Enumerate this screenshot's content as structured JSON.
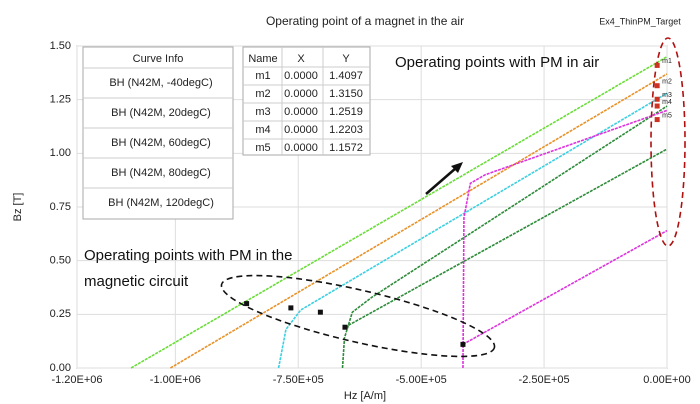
{
  "chart_data": {
    "type": "line",
    "title": "Operating point of a magnet in the air",
    "subtitle": "Ex4_ThinPM_Target",
    "x_label": "Hz [A/m]",
    "y_label": "Bz [T]",
    "xlim": [
      -1200000,
      0
    ],
    "xticks": [
      {
        "value": -1200000,
        "label": "-1.20E+06"
      },
      {
        "value": -1000000,
        "label": "-1.00E+06"
      },
      {
        "value": -750000,
        "label": "-7.50E+05"
      },
      {
        "value": -500000,
        "label": "-5.00E+05"
      },
      {
        "value": -250000,
        "label": "-2.50E+05"
      },
      {
        "value": 0,
        "label": "0.00E+00"
      }
    ],
    "ylim": [
      0,
      1.5
    ],
    "yticks": [
      {
        "value": 0,
        "label": "0.00"
      },
      {
        "value": 0.25,
        "label": "0.25"
      },
      {
        "value": 0.5,
        "label": "0.50"
      },
      {
        "value": 0.75,
        "label": "0.75"
      },
      {
        "value": 1,
        "label": "1.00"
      },
      {
        "value": 1.25,
        "label": "1.25"
      },
      {
        "value": 1.5,
        "label": "1.50"
      }
    ],
    "grid": true,
    "legend_title": "Curve Info",
    "series": [
      {
        "name": "BH (N42M, -40degC)",
        "color": "#6bdc3a",
        "x": [
          -1090000,
          0
        ],
        "values": [
          0,
          1.45
        ]
      },
      {
        "name": "BH (N42M, 20degC)",
        "color": "#e8922a",
        "x": [
          -1010000,
          0
        ],
        "values": [
          0,
          1.37
        ]
      },
      {
        "name": "BH (N42M, 60degC)",
        "color": "#3ccfe0",
        "x": [
          -790000,
          -775000,
          -745000,
          0
        ],
        "values": [
          0,
          0.18,
          0.27,
          1.28
        ]
      },
      {
        "name": "BH (N42M, 80degC)",
        "color": "#2e8b3a",
        "x": [
          -660000,
          -656000,
          -640000,
          -600000,
          0,
          null,
          -655000,
          0
        ],
        "values": [
          0,
          0.14,
          0.26,
          0.33,
          1.22,
          null,
          0.19,
          1.02
        ]
      },
      {
        "name": "BH (N42M, 120degC)",
        "color": "#dd33dd",
        "x": [
          -415000,
          -413000,
          -400000,
          -370000,
          0,
          null,
          -415000,
          0
        ],
        "values": [
          0,
          0.7,
          0.86,
          0.9,
          1.2,
          null,
          0.11,
          0.64
        ]
      }
    ],
    "circuit_points": {
      "color": "#111111",
      "x": [
        -855000,
        -765000,
        -705000,
        -655000,
        -415000
      ],
      "values": [
        0.3,
        0.28,
        0.26,
        0.19,
        0.11
      ]
    },
    "air_points": {
      "color": "#cc3322",
      "x": [
        -20000,
        -20000,
        -20000,
        -20000,
        -20000
      ],
      "values": [
        1.4097,
        1.315,
        1.2519,
        1.2203,
        1.1572
      ]
    },
    "marker_table": {
      "header": [
        "Name",
        "X",
        "Y"
      ],
      "rows": [
        [
          "m1",
          "0.0000",
          "1.4097"
        ],
        [
          "m2",
          "0.0000",
          "1.3150"
        ],
        [
          "m3",
          "0.0000",
          "1.2519"
        ],
        [
          "m4",
          "0.0000",
          "1.2203"
        ],
        [
          "m5",
          "0.0000",
          "1.1572"
        ]
      ]
    },
    "annotations": {
      "air": "Operating points with PM in air",
      "circuit": [
        "Operating points with PM in the",
        "magnetic circuit"
      ]
    }
  }
}
